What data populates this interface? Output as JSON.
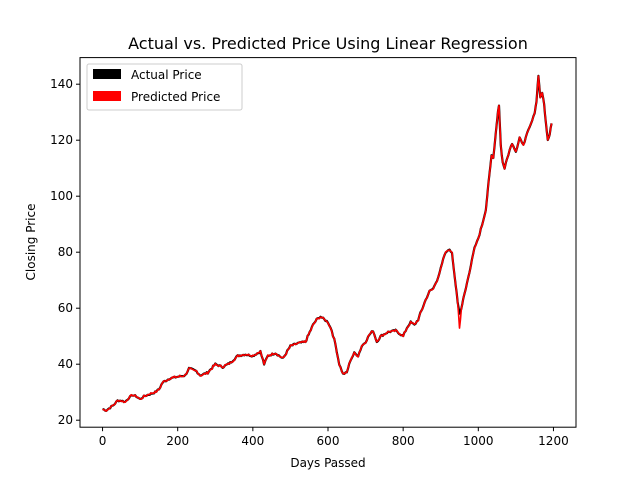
{
  "chart_data": {
    "type": "line",
    "title": "Actual vs. Predicted Price Using Linear Regression",
    "xlabel": "Days Passed",
    "ylabel": "Closing Price",
    "xlim": [
      -60,
      1260
    ],
    "ylim": [
      17.5,
      149.5
    ],
    "xticks": [
      0,
      200,
      400,
      600,
      800,
      1000,
      1200
    ],
    "yticks": [
      20,
      40,
      60,
      80,
      100,
      120,
      140
    ],
    "grid": false,
    "legend_position": "top-left",
    "colors": {
      "actual": "#000000",
      "predicted": "#ff0000"
    },
    "series": [
      {
        "name": "Actual Price",
        "key": "actual",
        "keypoints": [
          [
            0,
            24
          ],
          [
            10,
            23.5
          ],
          [
            20,
            24.5
          ],
          [
            30,
            25.5
          ],
          [
            40,
            27
          ],
          [
            50,
            27
          ],
          [
            60,
            26.5
          ],
          [
            70,
            28
          ],
          [
            80,
            29
          ],
          [
            90,
            28.5
          ],
          [
            100,
            27.5
          ],
          [
            110,
            28.5
          ],
          [
            120,
            29
          ],
          [
            140,
            30
          ],
          [
            150,
            31
          ],
          [
            160,
            33.5
          ],
          [
            180,
            35
          ],
          [
            200,
            35.5
          ],
          [
            220,
            36
          ],
          [
            230,
            38.5
          ],
          [
            250,
            37.5
          ],
          [
            260,
            36
          ],
          [
            280,
            37
          ],
          [
            300,
            40
          ],
          [
            320,
            39
          ],
          [
            340,
            40.5
          ],
          [
            360,
            43
          ],
          [
            380,
            43.5
          ],
          [
            400,
            43
          ],
          [
            420,
            44.5
          ],
          [
            430,
            40
          ],
          [
            440,
            43
          ],
          [
            460,
            44
          ],
          [
            480,
            42
          ],
          [
            500,
            46.5
          ],
          [
            520,
            47.5
          ],
          [
            540,
            48
          ],
          [
            560,
            54
          ],
          [
            570,
            56
          ],
          [
            580,
            57
          ],
          [
            590,
            56
          ],
          [
            600,
            55
          ],
          [
            610,
            52
          ],
          [
            620,
            47
          ],
          [
            630,
            40
          ],
          [
            640,
            36.5
          ],
          [
            650,
            37
          ],
          [
            660,
            41.5
          ],
          [
            670,
            44
          ],
          [
            680,
            43
          ],
          [
            690,
            46.5
          ],
          [
            700,
            48
          ],
          [
            710,
            50.5
          ],
          [
            720,
            52
          ],
          [
            730,
            48
          ],
          [
            740,
            50
          ],
          [
            760,
            51.5
          ],
          [
            780,
            52
          ],
          [
            800,
            50
          ],
          [
            810,
            53
          ],
          [
            820,
            55
          ],
          [
            830,
            54
          ],
          [
            840,
            56
          ],
          [
            860,
            63
          ],
          [
            870,
            66
          ],
          [
            880,
            67
          ],
          [
            890,
            70
          ],
          [
            900,
            74
          ],
          [
            910,
            79
          ],
          [
            920,
            81
          ],
          [
            930,
            80
          ],
          [
            935,
            74
          ],
          [
            940,
            68
          ],
          [
            945,
            62
          ],
          [
            950,
            58
          ],
          [
            955,
            60
          ],
          [
            960,
            63.5
          ],
          [
            970,
            69
          ],
          [
            980,
            75
          ],
          [
            990,
            82
          ],
          [
            1000,
            85
          ],
          [
            1010,
            90
          ],
          [
            1020,
            95
          ],
          [
            1030,
            108
          ],
          [
            1035,
            115
          ],
          [
            1040,
            113
          ],
          [
            1050,
            127
          ],
          [
            1055,
            133
          ],
          [
            1060,
            118
          ],
          [
            1065,
            112
          ],
          [
            1070,
            110
          ],
          [
            1080,
            115
          ],
          [
            1090,
            119
          ],
          [
            1100,
            116
          ],
          [
            1110,
            121
          ],
          [
            1120,
            118
          ],
          [
            1130,
            123
          ],
          [
            1140,
            126
          ],
          [
            1150,
            130
          ],
          [
            1155,
            134
          ],
          [
            1160,
            143
          ],
          [
            1165,
            135
          ],
          [
            1170,
            137
          ],
          [
            1175,
            133
          ],
          [
            1180,
            126
          ],
          [
            1185,
            120
          ],
          [
            1190,
            122
          ],
          [
            1195,
            126
          ]
        ]
      },
      {
        "name": "Predicted Price",
        "key": "predicted",
        "keypoints": [
          [
            0,
            24
          ],
          [
            10,
            23.5
          ],
          [
            20,
            24.5
          ],
          [
            30,
            25.5
          ],
          [
            40,
            27
          ],
          [
            50,
            27
          ],
          [
            60,
            26.5
          ],
          [
            70,
            28
          ],
          [
            80,
            29
          ],
          [
            90,
            28.5
          ],
          [
            100,
            27.5
          ],
          [
            110,
            28.5
          ],
          [
            120,
            29
          ],
          [
            140,
            30
          ],
          [
            150,
            31
          ],
          [
            160,
            33.5
          ],
          [
            180,
            35
          ],
          [
            200,
            35.5
          ],
          [
            220,
            36
          ],
          [
            230,
            38.5
          ],
          [
            250,
            37.5
          ],
          [
            260,
            36
          ],
          [
            280,
            37
          ],
          [
            300,
            40
          ],
          [
            320,
            39
          ],
          [
            340,
            40.5
          ],
          [
            360,
            43
          ],
          [
            380,
            43.5
          ],
          [
            400,
            43
          ],
          [
            420,
            44.5
          ],
          [
            430,
            40
          ],
          [
            440,
            43
          ],
          [
            460,
            44
          ],
          [
            480,
            42
          ],
          [
            500,
            46.5
          ],
          [
            520,
            47.5
          ],
          [
            540,
            48
          ],
          [
            560,
            54
          ],
          [
            570,
            56
          ],
          [
            580,
            57
          ],
          [
            590,
            56
          ],
          [
            600,
            55
          ],
          [
            610,
            52
          ],
          [
            620,
            47
          ],
          [
            630,
            40
          ],
          [
            640,
            36.5
          ],
          [
            650,
            37
          ],
          [
            660,
            41.5
          ],
          [
            670,
            44
          ],
          [
            680,
            43
          ],
          [
            690,
            46.5
          ],
          [
            700,
            48
          ],
          [
            710,
            50.5
          ],
          [
            720,
            52
          ],
          [
            730,
            48
          ],
          [
            740,
            50
          ],
          [
            760,
            51.5
          ],
          [
            780,
            52
          ],
          [
            800,
            50
          ],
          [
            810,
            53
          ],
          [
            820,
            55
          ],
          [
            830,
            54
          ],
          [
            840,
            56
          ],
          [
            860,
            63
          ],
          [
            870,
            66
          ],
          [
            880,
            67
          ],
          [
            890,
            70
          ],
          [
            900,
            74
          ],
          [
            910,
            79
          ],
          [
            920,
            81
          ],
          [
            930,
            80
          ],
          [
            935,
            74
          ],
          [
            940,
            68
          ],
          [
            945,
            62
          ],
          [
            950,
            53
          ],
          [
            955,
            60
          ],
          [
            960,
            63.5
          ],
          [
            970,
            69
          ],
          [
            980,
            75
          ],
          [
            990,
            82
          ],
          [
            1000,
            85
          ],
          [
            1010,
            90
          ],
          [
            1020,
            95
          ],
          [
            1030,
            108
          ],
          [
            1035,
            115
          ],
          [
            1040,
            113
          ],
          [
            1050,
            127
          ],
          [
            1055,
            133
          ],
          [
            1060,
            118
          ],
          [
            1065,
            112
          ],
          [
            1070,
            110
          ],
          [
            1080,
            115
          ],
          [
            1090,
            119
          ],
          [
            1100,
            116
          ],
          [
            1110,
            121
          ],
          [
            1120,
            118
          ],
          [
            1130,
            123
          ],
          [
            1140,
            126
          ],
          [
            1150,
            130
          ],
          [
            1155,
            134
          ],
          [
            1160,
            143
          ],
          [
            1165,
            135
          ],
          [
            1170,
            137
          ],
          [
            1175,
            133
          ],
          [
            1180,
            126
          ],
          [
            1185,
            120
          ],
          [
            1190,
            122
          ],
          [
            1195,
            126
          ]
        ]
      }
    ]
  }
}
